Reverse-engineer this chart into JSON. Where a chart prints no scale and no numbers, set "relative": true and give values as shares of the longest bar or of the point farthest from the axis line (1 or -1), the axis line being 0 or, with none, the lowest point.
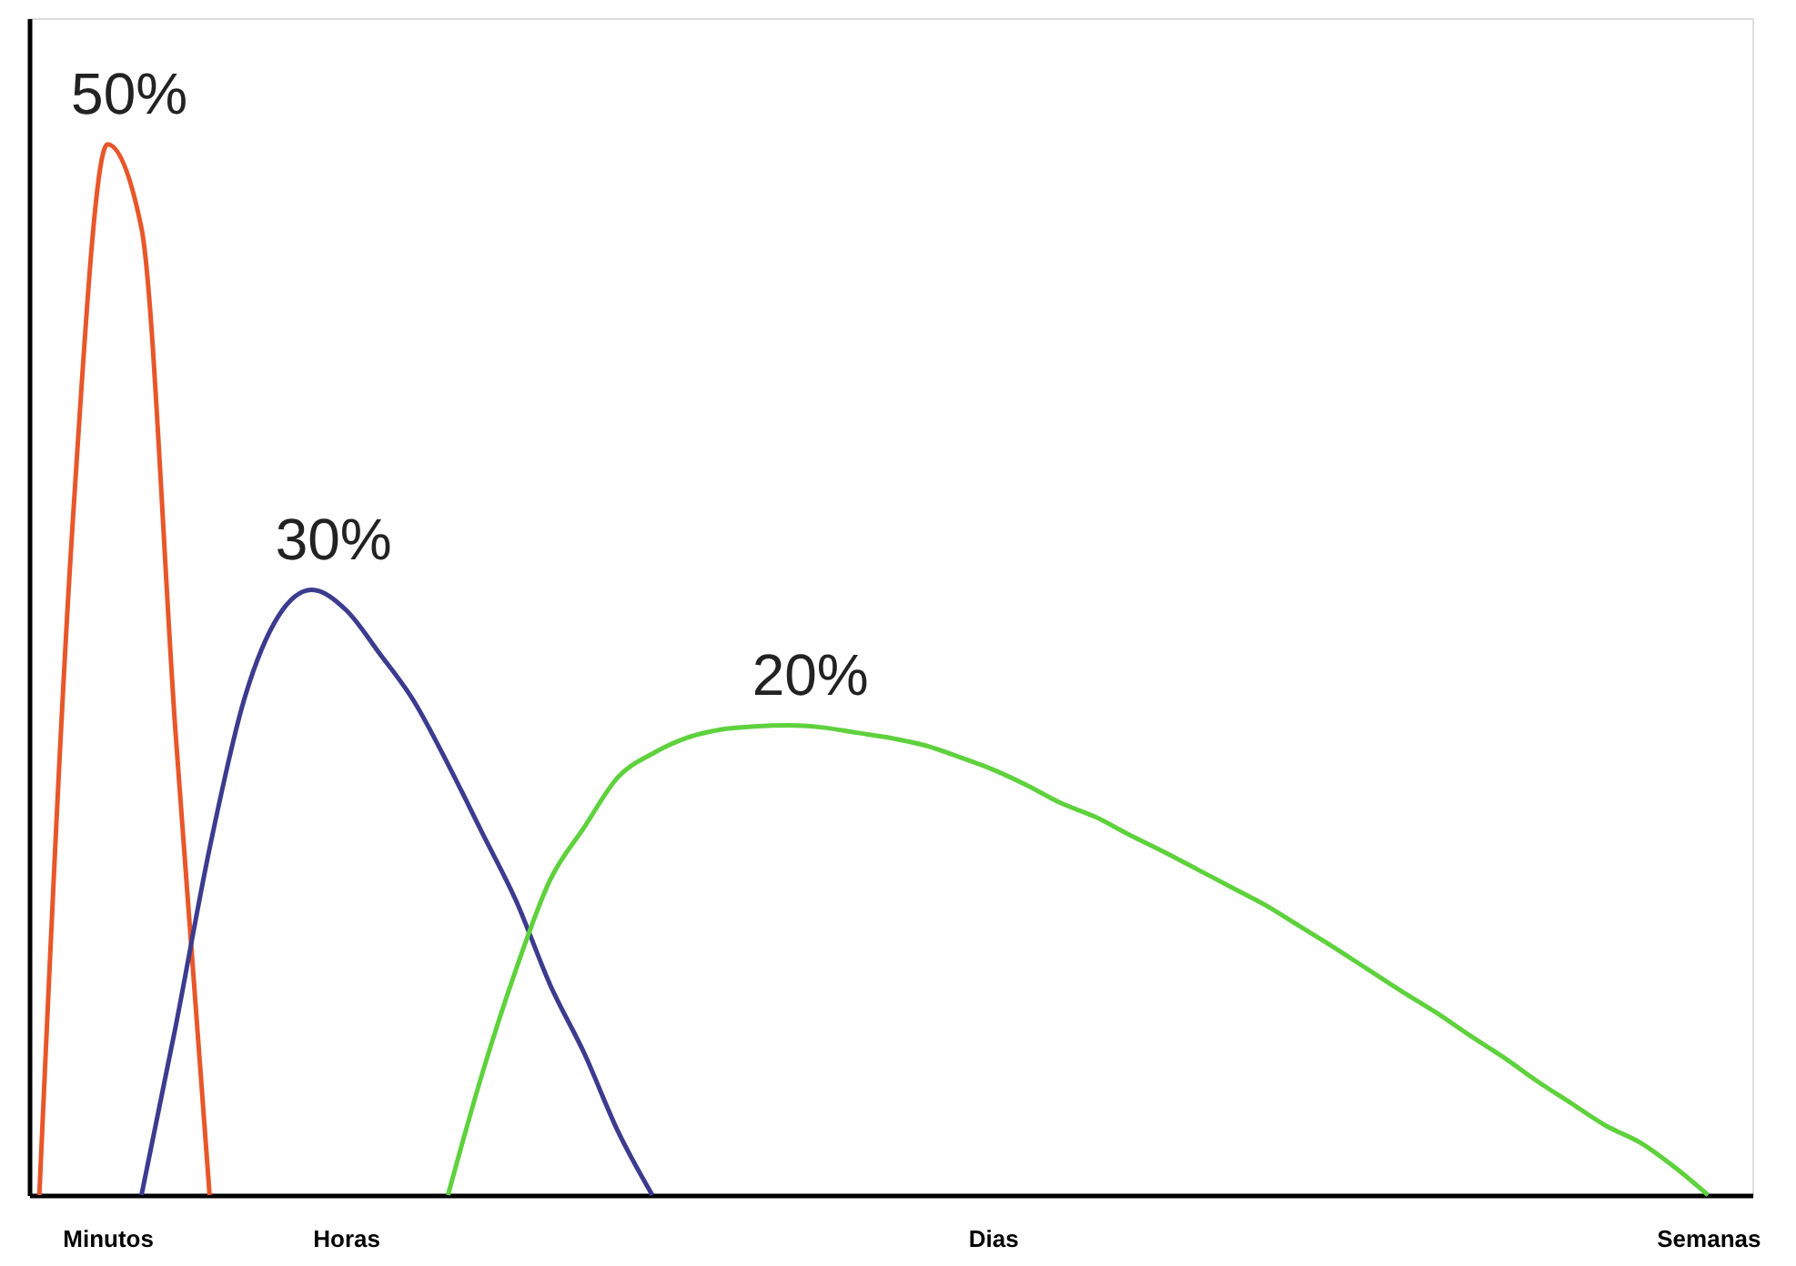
{
  "chart_data": {
    "type": "line",
    "relative": true,
    "grid": false,
    "marker": "none",
    "line_style": "solid",
    "categories": [
      null,
      null,
      "Minutos",
      null,
      null,
      null,
      null,
      null,
      null,
      "Horas",
      null,
      null,
      null,
      null,
      null,
      null,
      null,
      null,
      null,
      null,
      null,
      null,
      null,
      null,
      null,
      null,
      null,
      null,
      "Dias",
      null,
      null,
      null,
      null,
      null,
      null,
      null,
      null,
      null,
      null,
      null,
      null,
      null,
      null,
      null,
      null,
      null,
      null,
      null,
      null,
      "Semanas",
      null
    ],
    "series": [
      {
        "color": "#e8562a",
        "values": [
          0,
          0.65,
          1,
          0.92,
          0.44,
          0,
          null,
          null,
          null,
          null,
          null,
          null,
          null,
          null,
          null,
          null,
          null,
          null,
          null,
          null,
          null,
          null,
          null,
          null,
          null,
          null,
          null,
          null,
          null,
          null,
          null,
          null,
          null,
          null,
          null,
          null,
          null,
          null,
          null,
          null,
          null,
          null,
          null,
          null,
          null,
          null,
          null,
          null,
          null,
          null,
          null
        ]
      },
      {
        "color": "#3b3b8f",
        "values": [
          null,
          null,
          null,
          0,
          0.16,
          0.33,
          0.47,
          0.55,
          0.576,
          0.557,
          0.515,
          0.47,
          0.41,
          0.345,
          0.28,
          0.2,
          0.135,
          0.06,
          0,
          null,
          null,
          null,
          null,
          null,
          null,
          null,
          null,
          null,
          null,
          null,
          null,
          null,
          null,
          null,
          null,
          null,
          null,
          null,
          null,
          null,
          null,
          null,
          null,
          null,
          null,
          null,
          null,
          null,
          null,
          null,
          null
        ]
      },
      {
        "color": "#5ed13d",
        "values": [
          null,
          null,
          null,
          null,
          null,
          null,
          null,
          null,
          null,
          null,
          null,
          null,
          0,
          0.115,
          0.215,
          0.3,
          0.35,
          0.398,
          0.42,
          0.435,
          0.443,
          0.446,
          0.447,
          0.445,
          0.44,
          0.435,
          0.428,
          0.417,
          0.405,
          0.39,
          0.373,
          0.36,
          0.343,
          0.327,
          0.31,
          0.293,
          0.276,
          0.256,
          0.236,
          0.215,
          0.194,
          0.174,
          0.152,
          0.131,
          0.108,
          0.087,
          0.066,
          0.05,
          0.027,
          0,
          null
        ]
      }
    ],
    "annotations": [
      "50%",
      "30%",
      "20%"
    ]
  }
}
